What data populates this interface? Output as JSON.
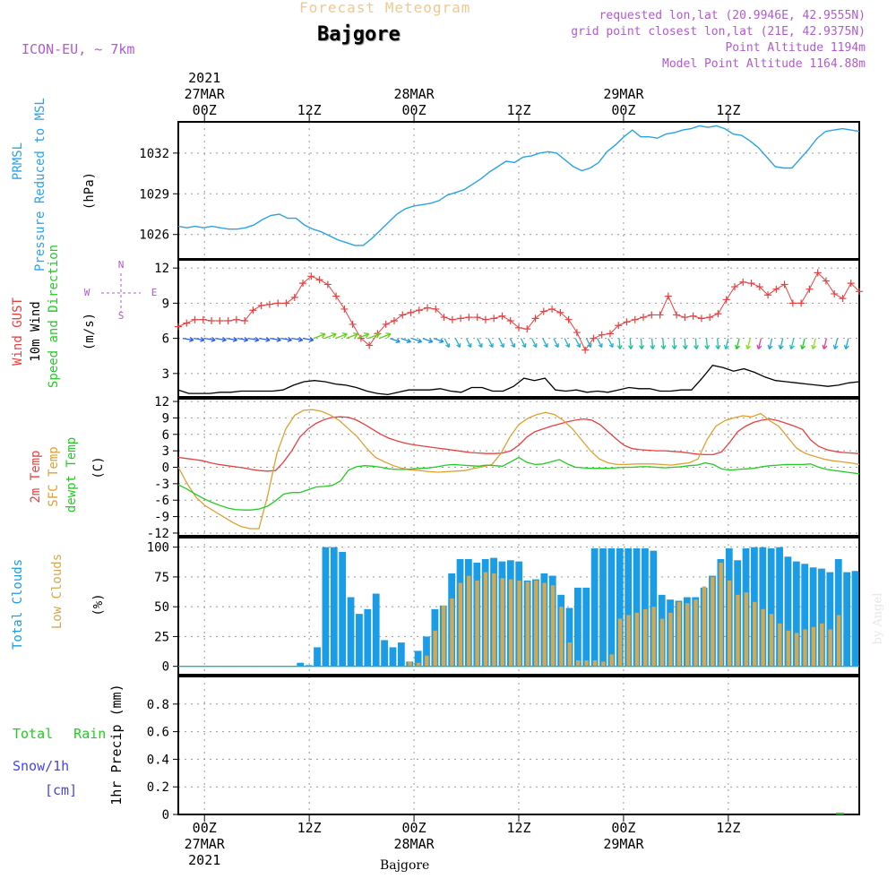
{
  "header": {
    "forecast_title": "Forecast Meteogram",
    "location": "Bajgore",
    "model": "ICON-EU, ~ 7km",
    "requested": "requested lon,lat (20.9946E, 42.9555N)",
    "grid_point": "grid point closest lon,lat (21E, 42.9375N)",
    "point_altitude": "Point Altitude 1194m",
    "model_altitude": "Model Point Altitude 1164.88m"
  },
  "footer_location": "Bajgore",
  "watermark": "by Angel",
  "colors": {
    "pressure": "#29a3e8",
    "gust": "#e84040",
    "wind": "#000000",
    "arrows": "#22cc22",
    "t2m": "#e84040",
    "sfc": "#e0a030",
    "dew": "#22cc22",
    "total_clouds": "#1a9ce6",
    "low_clouds": "#d6a84e",
    "rain": "#22cc22",
    "snow": "#4444ee",
    "meta": "#b05ad0"
  },
  "time_axis": {
    "hours": 78,
    "ticks": [
      {
        "h": 3,
        "label": "00Z",
        "date": "27MAR",
        "year": "2021"
      },
      {
        "h": 15,
        "label": "12Z",
        "date": "",
        "year": ""
      },
      {
        "h": 27,
        "label": "00Z",
        "date": "28MAR",
        "year": ""
      },
      {
        "h": 39,
        "label": "12Z",
        "date": "",
        "year": ""
      },
      {
        "h": 51,
        "label": "00Z",
        "date": "29MAR",
        "year": ""
      },
      {
        "h": 63,
        "label": "12Z",
        "date": "",
        "year": ""
      }
    ]
  },
  "chart_data": [
    {
      "type": "line",
      "id": "pressure",
      "title": "PRMSL Pressure Reduced to MSL",
      "ylabel": "(hPa)",
      "ylim": [
        1024.2,
        1034.3
      ],
      "yticks": [
        1026,
        1029,
        1032
      ],
      "series": [
        {
          "name": "PRMSL",
          "values": [
            1026.6,
            1026.5,
            1026.6,
            1026.5,
            1026.6,
            1026.5,
            1026.4,
            1026.4,
            1026.5,
            1026.7,
            1027.1,
            1027.4,
            1027.5,
            1027.2,
            1027.2,
            1026.7,
            1026.4,
            1026.2,
            1025.9,
            1025.6,
            1025.4,
            1025.2,
            1025.2,
            1025.7,
            1026.3,
            1026.9,
            1027.5,
            1027.9,
            1028.1,
            1028.2,
            1028.3,
            1028.5,
            1028.9,
            1029.1,
            1029.3,
            1029.7,
            1030.1,
            1030.6,
            1031.0,
            1031.4,
            1031.3,
            1031.7,
            1031.8,
            1032.0,
            1032.1,
            1032.0,
            1031.5,
            1031.0,
            1030.7,
            1030.9,
            1031.3,
            1032.1,
            1032.6,
            1033.2,
            1033.7,
            1033.2,
            1033.2,
            1033.1,
            1033.4,
            1033.5,
            1033.7,
            1033.8,
            1034.0,
            1033.9,
            1034.0,
            1033.8,
            1033.4,
            1033.3,
            1032.9,
            1032.4,
            1031.7,
            1031.0,
            1030.9,
            1030.9,
            1031.6,
            1032.3,
            1033.1,
            1033.6,
            1033.7,
            1033.8,
            1033.7,
            1033.6
          ]
        }
      ]
    },
    {
      "type": "line",
      "id": "wind",
      "title": "Wind GUST / 10m Wind Speed and Direction",
      "ylabel": "(m/s)",
      "ylim": [
        1.0,
        12.7
      ],
      "yticks": [
        3,
        6,
        9,
        12
      ],
      "compass": {
        "n": "N",
        "w": "W",
        "e": "E",
        "s": "S"
      },
      "series": [
        {
          "name": "Wind GUST",
          "values": [
            7.0,
            7.3,
            7.6,
            7.6,
            7.5,
            7.5,
            7.5,
            7.6,
            7.5,
            8.4,
            8.8,
            8.9,
            9.0,
            9.0,
            9.5,
            10.7,
            11.3,
            11.0,
            10.6,
            9.6,
            8.5,
            7.2,
            6.0,
            5.4,
            6.4,
            7.2,
            7.5,
            8.0,
            8.2,
            8.4,
            8.6,
            8.5,
            7.8,
            7.6,
            7.7,
            7.8,
            7.8,
            7.6,
            7.7,
            7.9,
            7.5,
            6.9,
            6.8,
            7.7,
            8.3,
            8.5,
            8.2,
            7.6,
            6.5,
            5.0,
            6.0,
            6.3,
            6.4,
            7.1,
            7.4,
            7.6,
            7.8,
            8.0,
            8.0,
            9.6,
            8.0,
            7.8,
            7.9,
            7.7,
            7.8,
            8.1,
            9.3,
            10.4,
            10.8,
            10.7,
            10.4,
            9.7,
            10.2,
            10.6,
            9.0,
            9.0,
            10.2,
            11.6,
            10.9,
            9.8,
            9.4,
            10.7,
            10.0
          ]
        },
        {
          "name": "10m Wind",
          "values": [
            1.6,
            1.3,
            1.3,
            1.3,
            1.4,
            1.4,
            1.5,
            1.5,
            1.5,
            1.5,
            1.6,
            2.0,
            2.3,
            2.4,
            2.3,
            2.1,
            2.0,
            1.8,
            1.5,
            1.3,
            1.2,
            1.4,
            1.6,
            1.6,
            1.6,
            1.7,
            1.5,
            1.4,
            1.8,
            1.8,
            1.5,
            1.5,
            1.9,
            2.6,
            2.4,
            2.6,
            1.6,
            1.5,
            1.6,
            1.4,
            1.5,
            1.4,
            1.6,
            1.8,
            1.7,
            1.7,
            1.5,
            1.5,
            1.6,
            1.6,
            2.6,
            3.7,
            3.5,
            3.2,
            3.4,
            3.1,
            2.7,
            2.4,
            2.3,
            2.2,
            2.1,
            2.0,
            1.9,
            2.0,
            2.2,
            2.3
          ]
        }
      ]
    },
    {
      "type": "line",
      "id": "temperature",
      "title": "2m Temp / SFC Temp / dewpt Temp",
      "ylabel": "(C)",
      "ylim": [
        -12.5,
        12.5
      ],
      "yticks": [
        -12,
        -9,
        -6,
        -3,
        0,
        3,
        6,
        9,
        12
      ],
      "series": [
        {
          "name": "2m Temp",
          "values": [
            1.8,
            1.6,
            1.4,
            1.2,
            0.8,
            0.5,
            0.3,
            0.1,
            -0.1,
            -0.4,
            -0.6,
            -0.7,
            -0.6,
            1.0,
            3.0,
            5.5,
            7.0,
            8.0,
            8.7,
            9.1,
            9.2,
            9.1,
            8.6,
            7.8,
            6.9,
            6.0,
            5.3,
            4.8,
            4.4,
            4.1,
            3.9,
            3.7,
            3.5,
            3.3,
            3.1,
            2.9,
            2.7,
            2.6,
            2.5,
            2.5,
            2.6,
            3.0,
            4.0,
            5.5,
            6.5,
            7.0,
            7.5,
            7.9,
            8.3,
            8.6,
            8.8,
            8.6,
            7.8,
            6.5,
            5.2,
            4.0,
            3.4,
            3.2,
            3.1,
            3.0,
            3.0,
            2.9,
            2.8,
            2.6,
            2.4,
            2.3,
            2.3,
            2.8,
            4.5,
            6.5,
            7.5,
            8.2,
            8.6,
            8.8,
            8.5,
            8.0,
            7.5,
            6.9,
            5.0,
            3.8,
            3.2,
            2.9,
            2.7,
            2.6,
            2.5
          ]
        },
        {
          "name": "SFC Temp",
          "values": [
            0.0,
            -3.0,
            -5.5,
            -7.0,
            -8.0,
            -9.0,
            -10.0,
            -10.8,
            -11.2,
            -11.2,
            -5.0,
            2.5,
            7.0,
            9.5,
            10.4,
            10.5,
            10.2,
            9.5,
            8.5,
            7.0,
            5.5,
            3.5,
            1.8,
            1.0,
            0.3,
            -0.2,
            -0.5,
            -0.6,
            -0.8,
            -0.9,
            -0.8,
            -0.7,
            -0.6,
            -0.2,
            0.1,
            0.5,
            2.5,
            5.5,
            7.8,
            8.9,
            9.6,
            10.0,
            9.6,
            8.5,
            7.0,
            5.0,
            3.0,
            1.5,
            0.8,
            0.5,
            0.5,
            0.6,
            0.6,
            0.6,
            0.5,
            0.4,
            0.6,
            0.8,
            1.5,
            5.0,
            7.5,
            8.5,
            9.0,
            9.4,
            9.2,
            9.8,
            8.5,
            7.5,
            5.5,
            3.5,
            2.5,
            2.0,
            1.5,
            1.2,
            1.0,
            0.8,
            0.5
          ]
        },
        {
          "name": "dewpt Temp",
          "values": [
            -3.2,
            -3.9,
            -4.8,
            -5.6,
            -6.3,
            -6.9,
            -7.4,
            -7.7,
            -7.8,
            -7.8,
            -7.6,
            -7.1,
            -6.1,
            -4.9,
            -4.6,
            -4.6,
            -4.1,
            -3.6,
            -3.5,
            -3.3,
            -2.5,
            -0.5,
            0.1,
            0.3,
            0.2,
            0.0,
            -0.3,
            -0.4,
            -0.4,
            -0.3,
            -0.2,
            -0.1,
            0.1,
            0.4,
            0.5,
            0.4,
            0.3,
            0.2,
            0.4,
            0.3,
            0.2,
            1.0,
            1.8,
            0.9,
            0.5,
            0.6,
            1.0,
            1.4,
            0.6,
            0.0,
            -0.1,
            -0.2,
            -0.2,
            -0.2,
            -0.1,
            0.0,
            0.0,
            0.1,
            0.1,
            0.0,
            -0.1,
            0.0,
            0.1,
            0.3,
            0.4,
            0.8,
            0.5,
            -0.3,
            -0.5,
            -0.4,
            -0.3,
            -0.2,
            0.1,
            0.3,
            0.4,
            0.5,
            0.5,
            0.5,
            0.6,
            0.0,
            -0.4,
            -0.6,
            -0.8,
            -1.0,
            -1.2
          ]
        }
      ]
    },
    {
      "type": "bar",
      "id": "clouds",
      "title": "Total Clouds / Low Clouds",
      "ylabel": "(%)",
      "ylim": [
        -7,
        108
      ],
      "yticks": [
        0,
        25,
        50,
        75,
        100
      ],
      "series": [
        {
          "name": "Total Clouds",
          "values": [
            0,
            0,
            0,
            0,
            0,
            0,
            0,
            0,
            0,
            0,
            0,
            0,
            0,
            0,
            3,
            1,
            16,
            100,
            100,
            96,
            58,
            44,
            48,
            61,
            22,
            16,
            20,
            4,
            13,
            25,
            48,
            51,
            78,
            90,
            90,
            87,
            90,
            91,
            88,
            89,
            88,
            72,
            73,
            78,
            76,
            60,
            49,
            66,
            66,
            99,
            99,
            99,
            99,
            99,
            99,
            99,
            97,
            60,
            56,
            55,
            58,
            58,
            66,
            76,
            90,
            99,
            89,
            99,
            100,
            100,
            99,
            100,
            92,
            88,
            86,
            83,
            82,
            79,
            90,
            79,
            80
          ]
        },
        {
          "name": "Low Clouds",
          "values": [
            0,
            0,
            0,
            0,
            0,
            0,
            0,
            0,
            0,
            0,
            0,
            0,
            0,
            0,
            0,
            0,
            0,
            0,
            0,
            0,
            0,
            0,
            0,
            0,
            0,
            0,
            0,
            4,
            3,
            9,
            30,
            51,
            57,
            70,
            76,
            72,
            79,
            78,
            74,
            73,
            72,
            71,
            72,
            70,
            68,
            50,
            20,
            5,
            5,
            5,
            4,
            10,
            40,
            43,
            45,
            48,
            50,
            40,
            45,
            54,
            53,
            56,
            67,
            75,
            87,
            72,
            60,
            62,
            54,
            48,
            44,
            36,
            30,
            28,
            31,
            33,
            36,
            31,
            43
          ]
        }
      ]
    },
    {
      "type": "bar",
      "id": "precip",
      "title": "Total Rain / Snow/1h [cm]",
      "ylabel": "1hr Precip (mm)",
      "ylim": [
        0,
        1.0
      ],
      "yticks": [
        0,
        0.2,
        0.4,
        0.6,
        0.8
      ],
      "legend": {
        "rain": "Total Rain",
        "snow": "Snow/1h",
        "snow_unit": "[cm]"
      },
      "series": [
        {
          "name": "Total Rain",
          "values": [
            0
          ]
        }
      ]
    }
  ]
}
